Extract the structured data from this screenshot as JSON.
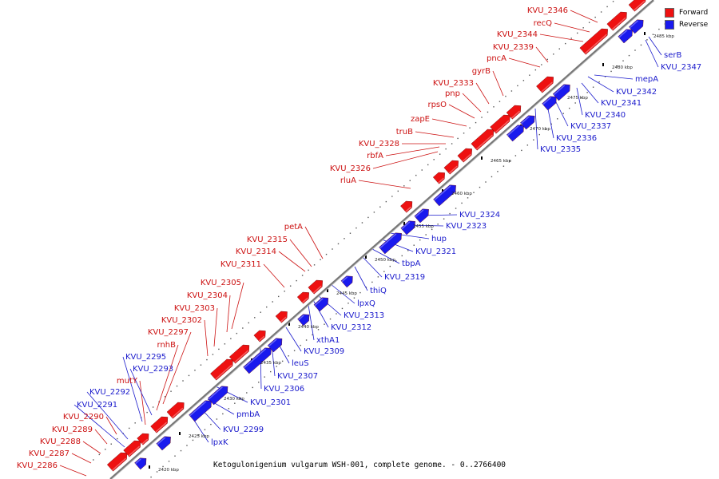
{
  "caption": "Ketogulonigenium vulgarum WSH-001, complete genome. - 0..2766400",
  "legend": [
    {
      "label": "Forward",
      "color": "#ee1111"
    },
    {
      "label": "Reverse",
      "color": "#1a1aee"
    }
  ],
  "colors": {
    "forward": "#ee1111",
    "reverse": "#1a1aee",
    "backbone": "#888888"
  },
  "ticks": [
    "2420 kbp",
    "2425 kbp",
    "2430 kbp",
    "2435 kbp",
    "2440 kbp",
    "2445 kbp",
    "2450 kbp",
    "2455 kbp",
    "2460 kbp",
    "2465 kbp",
    "2470 kbp",
    "2475 kbp",
    "2480 kbp",
    "2485 kbp"
  ],
  "forward_labels": [
    "KVU_2346",
    "recQ",
    "KVU_2344",
    "KVU_2339",
    "pncA",
    "gyrB",
    "KVU_2333",
    "pnp",
    "rpsO",
    "zapE",
    "truB",
    "KVU_2328",
    "rbfA",
    "KVU_2326",
    "rluA",
    "petA",
    "KVU_2315",
    "KVU_2314",
    "KVU_2311",
    "KVU_2305",
    "KVU_2304",
    "KVU_2303",
    "KVU_2302",
    "KVU_2297",
    "rnhB",
    "mutY",
    "KVU_2290",
    "KVU_2289",
    "KVU_2288",
    "KVU_2287",
    "KVU_2286"
  ],
  "reverse_labels": [
    "serB",
    "KVU_2347",
    "mepA",
    "KVU_2342",
    "KVU_2341",
    "KVU_2340",
    "KVU_2337",
    "KVU_2336",
    "KVU_2335",
    "KVU_2324",
    "KVU_2323",
    "hup",
    "KVU_2321",
    "tbpA",
    "KVU_2319",
    "thiQ",
    "lpxQ",
    "KVU_2313",
    "KVU_2312",
    "xthA1",
    "KVU_2309",
    "leuS",
    "KVU_2307",
    "KVU_2306",
    "KVU_2301",
    "pmbA",
    "KVU_2299",
    "lpxK",
    "KVU_2295",
    "KVU_2293",
    "KVU_2292",
    "KVU_2291"
  ]
}
